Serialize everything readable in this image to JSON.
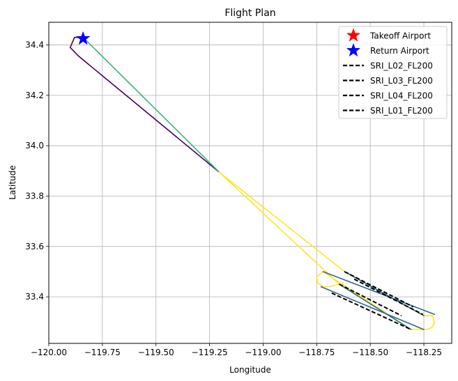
{
  "chart_data": {
    "type": "line",
    "title": "Flight Plan",
    "xlabel": "Longitude",
    "ylabel": "Latitude",
    "xlim": [
      -120.0,
      -118.12
    ],
    "ylim": [
      33.215,
      34.49
    ],
    "xticks": [
      -120.0,
      -119.75,
      -119.5,
      -119.25,
      -119.0,
      -118.75,
      -118.5,
      -118.25
    ],
    "xtick_labels": [
      "−120.00",
      "−119.75",
      "−119.50",
      "−119.25",
      "−119.00",
      "−118.75",
      "−118.50",
      "−118.25"
    ],
    "yticks": [
      33.4,
      33.6,
      33.8,
      34.0,
      34.2,
      34.4
    ],
    "ytick_labels": [
      "33.4",
      "33.6",
      "33.8",
      "34.0",
      "34.2",
      "34.4"
    ],
    "grid": true,
    "legend_position": "top-right",
    "legend": [
      {
        "label": "Takeoff Airport",
        "marker": "star",
        "color": "#ff0000"
      },
      {
        "label": "Return Airport",
        "marker": "star",
        "color": "#0000ff"
      },
      {
        "label": "SRI_L02_FL200",
        "marker": "dashed-line",
        "color": "#000000"
      },
      {
        "label": "SRI_L03_FL200",
        "marker": "dashed-line",
        "color": "#000000"
      },
      {
        "label": "SRI_L04_FL200",
        "marker": "dashed-line",
        "color": "#000000"
      },
      {
        "label": "SRI_L01_FL200",
        "marker": "dashed-line",
        "color": "#000000"
      }
    ],
    "series": [
      {
        "color": "#440154",
        "style": "solid",
        "x": [
          -119.205,
          -119.86,
          -119.9,
          -119.88,
          -119.84
        ],
        "y": [
          33.895,
          34.355,
          34.39,
          34.43,
          34.43
        ]
      },
      {
        "color": "#35b779",
        "style": "solid",
        "x": [
          -119.84,
          -119.205
        ],
        "y": [
          34.43,
          33.895
        ]
      },
      {
        "color": "#fde725",
        "style": "solid",
        "x": [
          -119.205,
          -118.62,
          -118.25,
          -118.21,
          -118.2,
          -118.21,
          -118.235,
          -118.31,
          -118.72,
          -118.75,
          -118.745,
          -118.72,
          -118.69,
          -118.645,
          -119.205
        ],
        "y": [
          33.895,
          33.5,
          33.325,
          33.325,
          33.3,
          33.28,
          33.27,
          33.27,
          33.5,
          33.48,
          33.455,
          33.44,
          33.44,
          33.45,
          33.895
        ]
      },
      {
        "color": "#31688e",
        "style": "solid",
        "x": [
          -118.72,
          -118.2
        ],
        "y": [
          33.5,
          33.33
        ]
      },
      {
        "color": "#31688e",
        "style": "solid",
        "x": [
          -118.73,
          -118.25
        ],
        "y": [
          33.44,
          33.27
        ]
      },
      {
        "color": "#31688e",
        "style": "solid",
        "x": [
          -118.645,
          -118.31
        ],
        "y": [
          33.45,
          33.27
        ]
      },
      {
        "color": "#31688e",
        "style": "solid",
        "x": [
          -118.62,
          -118.25
        ],
        "y": [
          33.5,
          33.325
        ]
      },
      {
        "name": "SRI_L02_FL200",
        "color": "#000000",
        "style": "dashed",
        "x": [
          -118.62,
          -118.3
        ],
        "y": [
          33.5,
          33.36
        ]
      },
      {
        "name": "SRI_L03_FL200",
        "color": "#000000",
        "style": "dashed",
        "x": [
          -118.575,
          -118.255
        ],
        "y": [
          33.47,
          33.33
        ]
      },
      {
        "name": "SRI_L04_FL200",
        "color": "#000000",
        "style": "dashed",
        "x": [
          -118.645,
          -118.355
        ],
        "y": [
          33.45,
          33.325
        ]
      },
      {
        "name": "SRI_L01_FL200",
        "color": "#000000",
        "style": "dashed",
        "x": [
          -118.68,
          -118.31
        ],
        "y": [
          33.415,
          33.27
        ]
      }
    ],
    "points": [
      {
        "label": "Takeoff Airport",
        "x": -119.84,
        "y": 34.425,
        "color": "#ff0000"
      },
      {
        "label": "Return Airport",
        "x": -119.84,
        "y": 34.425,
        "color": "#0000ff"
      }
    ]
  }
}
